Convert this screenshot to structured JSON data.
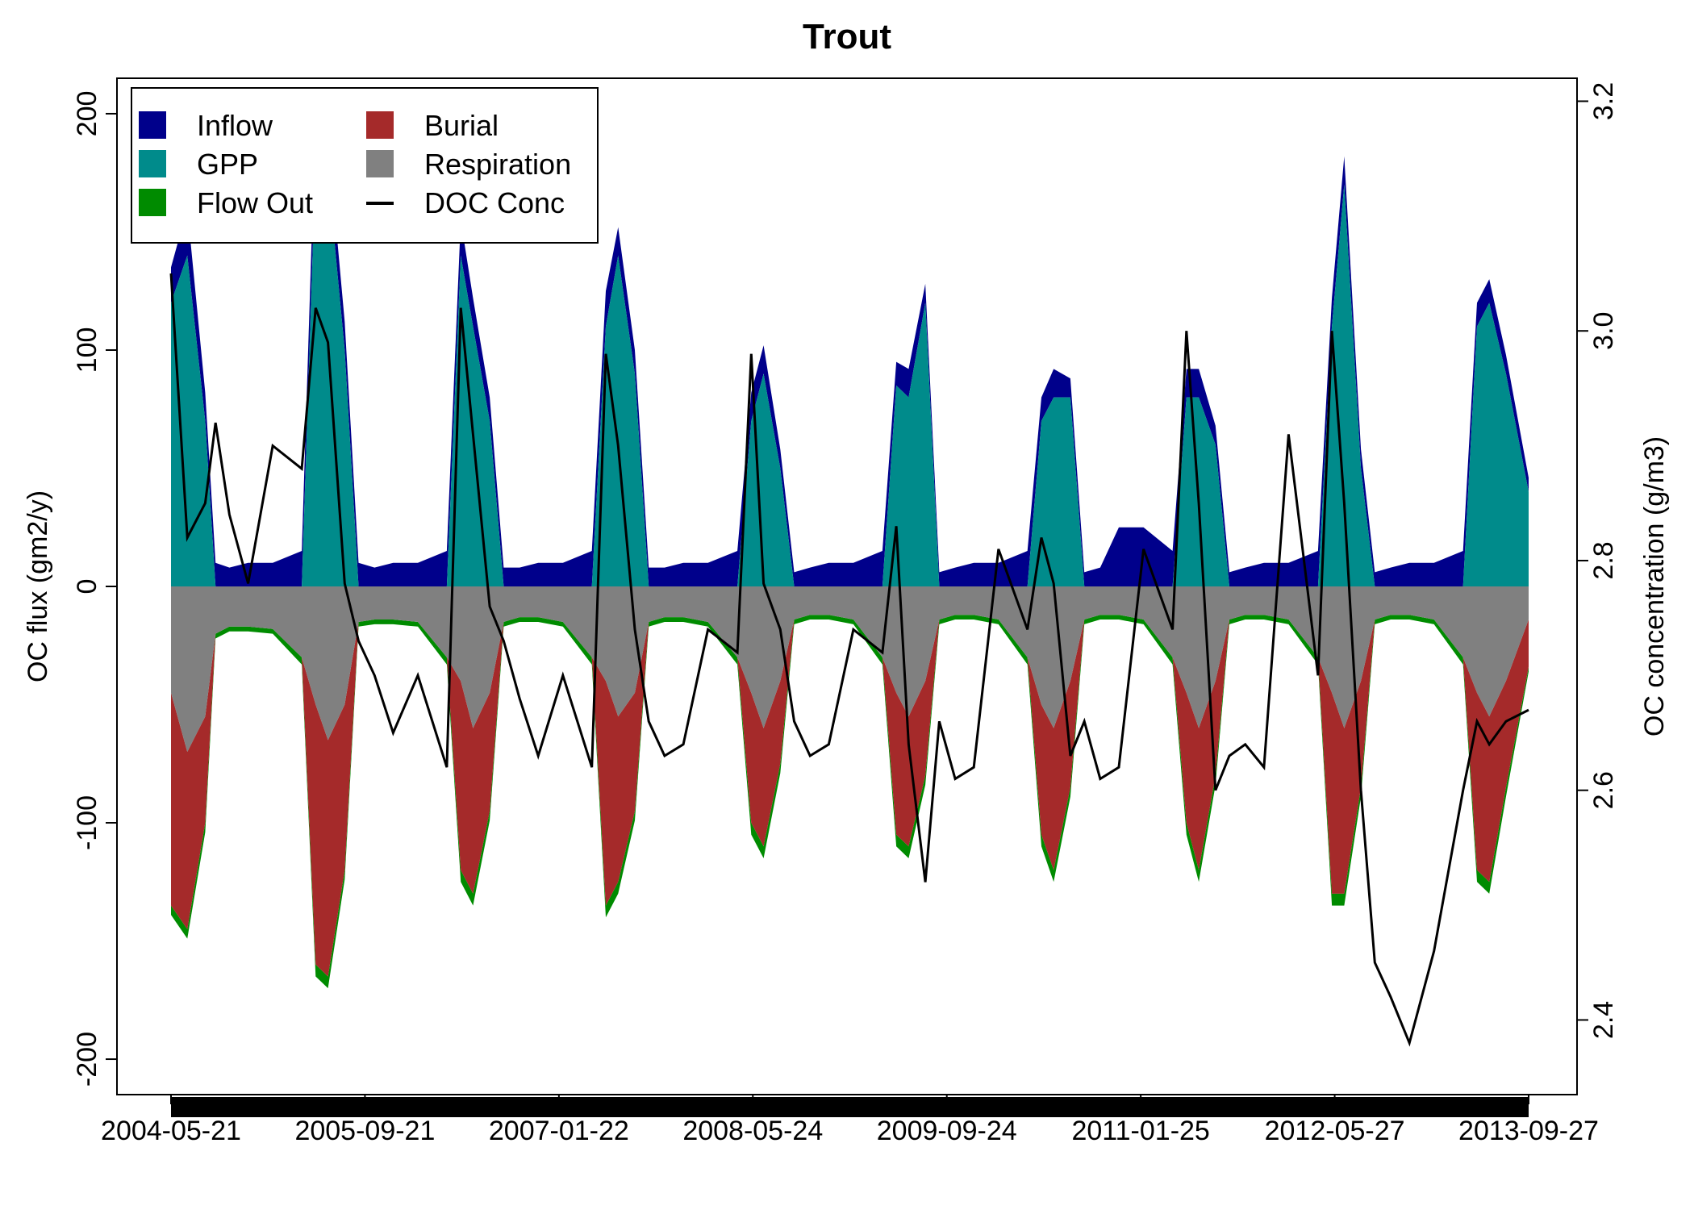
{
  "chart_data": {
    "type": "area",
    "title": "Trout",
    "xlabel": "",
    "ylabel": "OC flux (gm2/y)",
    "y2label": "OC concentration (g/m3)",
    "ylim": [
      -215,
      215
    ],
    "y2lim": [
      2.335,
      3.22
    ],
    "xlim": [
      "2004-05-21",
      "2013-09-27"
    ],
    "x_ticks": [
      "2004-05-21",
      "2005-09-21",
      "2007-01-22",
      "2008-05-24",
      "2009-09-24",
      "2011-01-25",
      "2012-05-27",
      "2013-09-27"
    ],
    "y_ticks": [
      "-200",
      "-100",
      "0",
      "100",
      "200"
    ],
    "y2_ticks": [
      "2.4",
      "2.6",
      "2.8",
      "3.0",
      "3.2"
    ],
    "grid": false,
    "legend_position": "top-left",
    "legend": [
      {
        "label": "Inflow",
        "color": "#00008B",
        "marker": "box"
      },
      {
        "label": "Burial",
        "color": "#A52A2A",
        "marker": "box"
      },
      {
        "label": "GPP",
        "color": "#008B8B",
        "marker": "box"
      },
      {
        "label": "Respiration",
        "color": "#808080",
        "marker": "box"
      },
      {
        "label": "Flow Out",
        "color": "#008B00",
        "marker": "box"
      },
      {
        "label": "DOC Conc",
        "color": "#000000",
        "marker": "line"
      }
    ],
    "dates": [
      "2004-05-21",
      "2004-07-01",
      "2004-08-15",
      "2004-09-10",
      "2004-10-15",
      "2004-12-01",
      "2005-02-01",
      "2005-04-15",
      "2005-05-20",
      "2005-06-20",
      "2005-08-01",
      "2005-09-05",
      "2005-10-15",
      "2005-12-01",
      "2006-02-01",
      "2006-04-15",
      "2006-05-20",
      "2006-06-20",
      "2006-08-01",
      "2006-09-05",
      "2006-10-15",
      "2006-12-01",
      "2007-02-01",
      "2007-04-15",
      "2007-05-20",
      "2007-06-20",
      "2007-08-01",
      "2007-09-05",
      "2007-10-15",
      "2007-12-01",
      "2008-02-01",
      "2008-04-15",
      "2008-05-20",
      "2008-06-20",
      "2008-08-01",
      "2008-09-05",
      "2008-10-15",
      "2008-12-01",
      "2009-02-01",
      "2009-04-15",
      "2009-05-20",
      "2009-06-20",
      "2009-08-01",
      "2009-09-05",
      "2009-10-15",
      "2009-12-01",
      "2010-02-01",
      "2010-04-15",
      "2010-05-20",
      "2010-06-20",
      "2010-08-01",
      "2010-09-05",
      "2010-10-15",
      "2010-12-01",
      "2011-02-01",
      "2011-04-15",
      "2011-05-20",
      "2011-06-20",
      "2011-08-01",
      "2011-09-05",
      "2011-10-15",
      "2011-12-01",
      "2012-02-01",
      "2012-04-15",
      "2012-05-20",
      "2012-06-20",
      "2012-08-01",
      "2012-09-05",
      "2012-10-15",
      "2012-12-01",
      "2013-02-01",
      "2013-04-15",
      "2013-05-20",
      "2013-06-20",
      "2013-08-01",
      "2013-09-27"
    ],
    "series": [
      {
        "name": "Inflow",
        "color": "#00008B",
        "values": [
          15,
          20,
          12,
          10,
          8,
          10,
          10,
          15,
          20,
          15,
          12,
          10,
          8,
          10,
          10,
          15,
          15,
          12,
          10,
          8,
          8,
          10,
          10,
          15,
          15,
          12,
          10,
          8,
          8,
          10,
          10,
          15,
          12,
          12,
          8,
          6,
          8,
          10,
          10,
          15,
          10,
          12,
          8,
          6,
          8,
          10,
          10,
          15,
          10,
          12,
          8,
          6,
          8,
          25,
          25,
          15,
          12,
          12,
          8,
          6,
          8,
          10,
          10,
          15,
          12,
          12,
          8,
          6,
          8,
          10,
          10,
          15,
          10,
          10,
          8,
          6
        ]
      },
      {
        "name": "GPP",
        "color": "#008B8B",
        "values": [
          120,
          140,
          70,
          0,
          0,
          0,
          0,
          0,
          180,
          175,
          100,
          0,
          0,
          0,
          0,
          0,
          140,
          110,
          70,
          0,
          0,
          0,
          0,
          0,
          110,
          140,
          90,
          0,
          0,
          0,
          0,
          0,
          70,
          90,
          50,
          0,
          0,
          0,
          0,
          0,
          85,
          80,
          120,
          0,
          0,
          0,
          0,
          0,
          70,
          80,
          80,
          0,
          0,
          0,
          0,
          0,
          80,
          80,
          60,
          0,
          0,
          0,
          0,
          0,
          110,
          170,
          50,
          0,
          0,
          0,
          0,
          0,
          110,
          120,
          90,
          40
        ]
      },
      {
        "name": "Respiration",
        "color": "#808080",
        "values": [
          -45,
          -70,
          -55,
          -20,
          -17,
          -17,
          -18,
          -30,
          -50,
          -65,
          -50,
          -15,
          -14,
          -14,
          -15,
          -30,
          -40,
          -60,
          -45,
          -15,
          -13,
          -13,
          -15,
          -30,
          -40,
          -55,
          -45,
          -15,
          -13,
          -13,
          -15,
          -30,
          -45,
          -60,
          -40,
          -14,
          -12,
          -12,
          -14,
          -30,
          -45,
          -55,
          -40,
          -14,
          -12,
          -12,
          -14,
          -30,
          -50,
          -60,
          -40,
          -14,
          -12,
          -12,
          -14,
          -30,
          -45,
          -60,
          -40,
          -14,
          -12,
          -12,
          -14,
          -30,
          -45,
          -60,
          -40,
          -14,
          -12,
          -12,
          -14,
          -30,
          -45,
          -55,
          -40,
          -14
        ]
      },
      {
        "name": "Burial",
        "color": "#A52A2A",
        "values": [
          -90,
          -75,
          -45,
          0,
          0,
          0,
          0,
          0,
          -110,
          -100,
          -70,
          0,
          0,
          0,
          0,
          0,
          -80,
          -70,
          -50,
          0,
          0,
          0,
          0,
          0,
          -95,
          -70,
          -50,
          0,
          0,
          0,
          0,
          0,
          -55,
          -50,
          -35,
          0,
          0,
          0,
          0,
          0,
          -60,
          -55,
          -40,
          0,
          0,
          0,
          0,
          0,
          -55,
          -60,
          -45,
          0,
          0,
          0,
          0,
          0,
          -55,
          -60,
          -40,
          0,
          0,
          0,
          0,
          0,
          -85,
          -70,
          -45,
          0,
          0,
          0,
          0,
          0,
          -75,
          -70,
          -45,
          -20
        ]
      },
      {
        "name": "Flow Out",
        "color": "#008B00",
        "values": [
          -4,
          -4,
          -4,
          -2,
          -2,
          -2,
          -2,
          -3,
          -5,
          -5,
          -4,
          -2,
          -2,
          -2,
          -2,
          -3,
          -5,
          -5,
          -4,
          -2,
          -2,
          -2,
          -2,
          -3,
          -5,
          -5,
          -4,
          -2,
          -2,
          -2,
          -2,
          -3,
          -5,
          -5,
          -4,
          -2,
          -2,
          -2,
          -2,
          -3,
          -5,
          -5,
          -4,
          -2,
          -2,
          -2,
          -2,
          -3,
          -5,
          -5,
          -4,
          -2,
          -2,
          -2,
          -2,
          -3,
          -5,
          -5,
          -4,
          -2,
          -2,
          -2,
          -2,
          -3,
          -5,
          -5,
          -4,
          -2,
          -2,
          -2,
          -2,
          -3,
          -5,
          -5,
          -4,
          -2
        ]
      },
      {
        "name": "DOC Conc",
        "color": "#000000",
        "axis": "right",
        "values": [
          3.05,
          2.82,
          2.85,
          2.92,
          2.84,
          2.78,
          2.9,
          2.88,
          3.02,
          2.99,
          2.78,
          2.73,
          2.7,
          2.65,
          2.7,
          2.62,
          3.02,
          2.91,
          2.76,
          2.73,
          2.68,
          2.63,
          2.7,
          2.62,
          2.98,
          2.9,
          2.74,
          2.66,
          2.63,
          2.64,
          2.74,
          2.72,
          2.98,
          2.78,
          2.74,
          2.66,
          2.63,
          2.64,
          2.74,
          2.72,
          2.83,
          2.64,
          2.52,
          2.66,
          2.61,
          2.62,
          2.81,
          2.74,
          2.82,
          2.78,
          2.63,
          2.66,
          2.61,
          2.62,
          2.81,
          2.74,
          3.0,
          2.85,
          2.6,
          2.63,
          2.64,
          2.62,
          2.91,
          2.7,
          3.0,
          2.85,
          2.6,
          2.45,
          2.42,
          2.38,
          2.46,
          2.6,
          2.66,
          2.64,
          2.66,
          2.67
        ]
      }
    ]
  }
}
